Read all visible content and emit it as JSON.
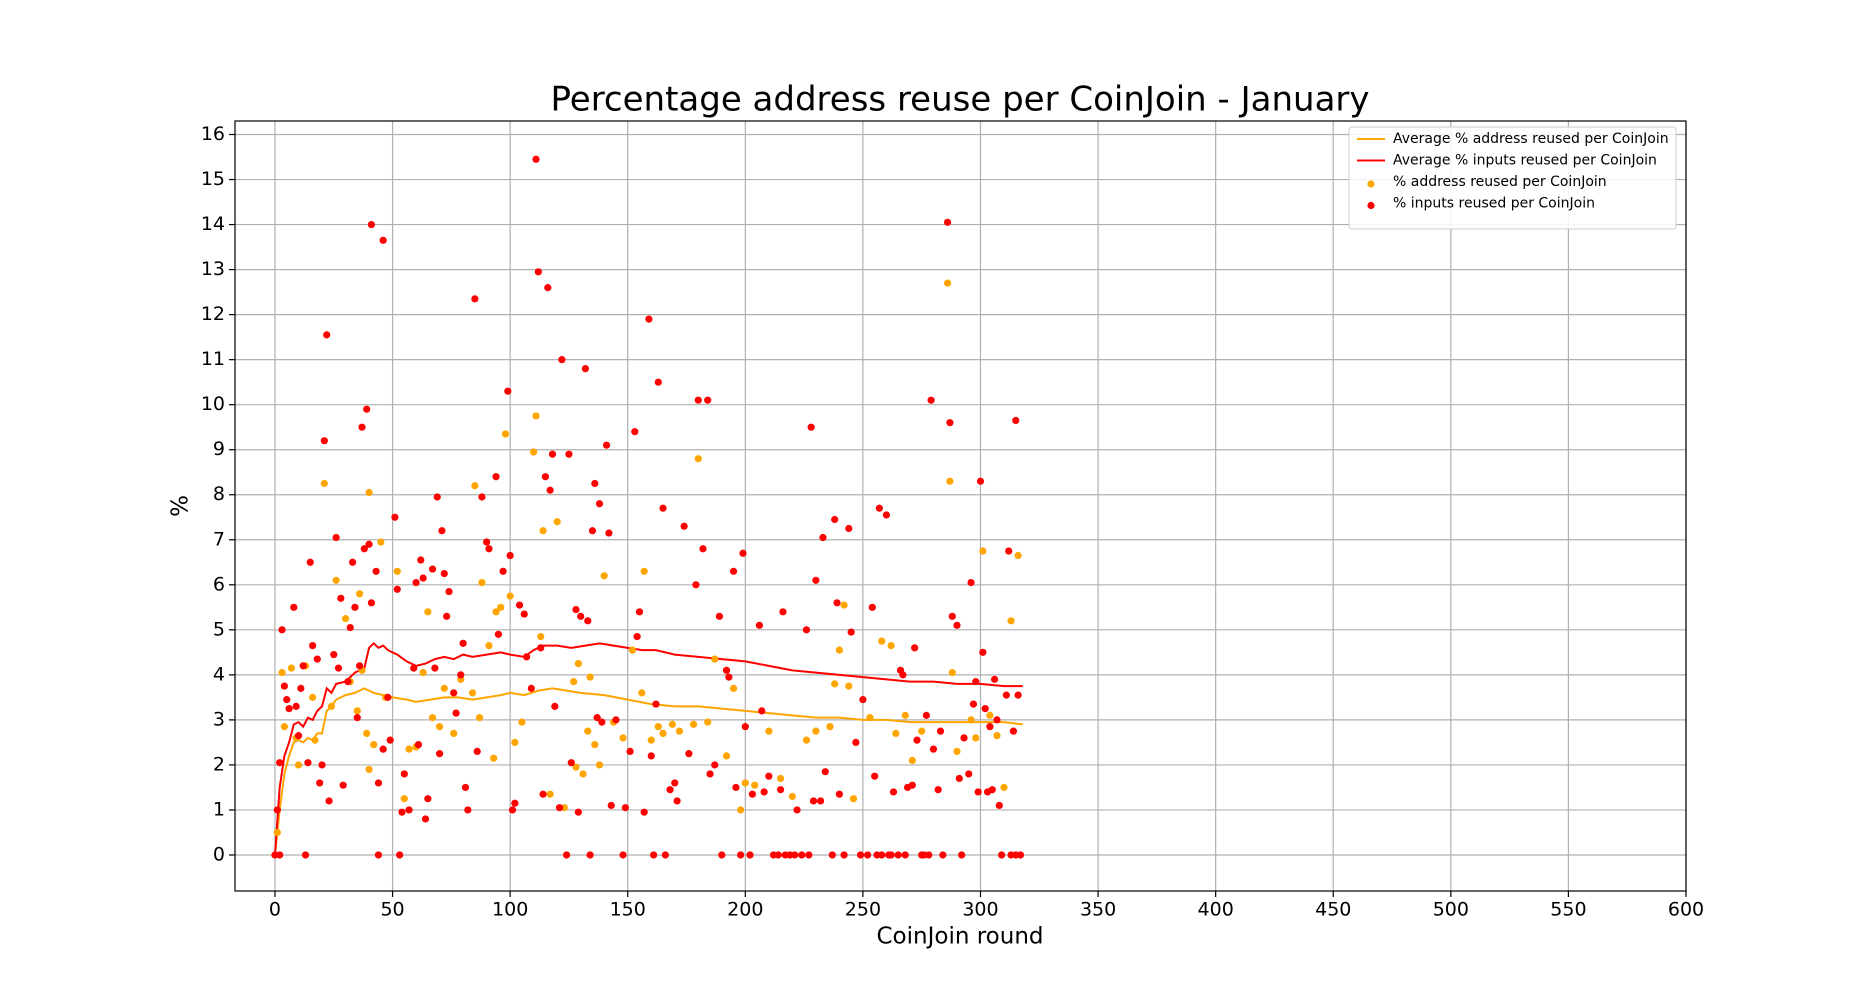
{
  "chart_data": {
    "type": "scatter",
    "title": "Percentage address reuse per CoinJoin - January",
    "x_label": "CoinJoin round",
    "y_label": "%",
    "xlim": [
      -17,
      600
    ],
    "ylim": [
      -0.8,
      16.3
    ],
    "xticks": [
      0,
      50,
      100,
      150,
      200,
      250,
      300,
      350,
      400,
      450,
      500,
      550,
      600
    ],
    "yticks": [
      0,
      1,
      2,
      3,
      4,
      5,
      6,
      7,
      8,
      9,
      10,
      11,
      12,
      13,
      14,
      15,
      16
    ],
    "grid": true,
    "legend": "upper right",
    "series": [
      {
        "name": "Average % address reused per CoinJoin",
        "color": "#ffa500",
        "type": "line",
        "x": [
          0,
          2,
          4,
          6,
          8,
          10,
          12,
          14,
          16,
          18,
          20,
          22,
          24,
          26,
          30,
          34,
          38,
          42,
          46,
          50,
          56,
          60,
          66,
          72,
          78,
          84,
          90,
          96,
          100,
          106,
          112,
          118,
          124,
          130,
          140,
          150,
          160,
          170,
          180,
          190,
          200,
          210,
          220,
          230,
          240,
          250,
          260,
          270,
          280,
          290,
          300,
          310,
          318
        ],
        "values": [
          0,
          1.0,
          1.8,
          2.2,
          2.5,
          2.55,
          2.5,
          2.6,
          2.55,
          2.7,
          2.7,
          3.2,
          3.3,
          3.45,
          3.55,
          3.6,
          3.7,
          3.6,
          3.55,
          3.5,
          3.45,
          3.4,
          3.45,
          3.5,
          3.5,
          3.45,
          3.5,
          3.55,
          3.6,
          3.55,
          3.65,
          3.7,
          3.65,
          3.6,
          3.55,
          3.45,
          3.35,
          3.3,
          3.3,
          3.25,
          3.2,
          3.15,
          3.1,
          3.05,
          3.05,
          3.0,
          3.0,
          2.95,
          2.95,
          2.95,
          2.95,
          2.95,
          2.9
        ]
      },
      {
        "name": "Average % inputs reused per CoinJoin",
        "color": "#ff0000",
        "type": "line",
        "x": [
          0,
          2,
          4,
          6,
          8,
          10,
          12,
          14,
          16,
          18,
          20,
          22,
          24,
          26,
          30,
          34,
          38,
          40,
          42,
          44,
          46,
          48,
          52,
          56,
          60,
          64,
          68,
          72,
          76,
          80,
          84,
          90,
          96,
          100,
          106,
          110,
          114,
          120,
          126,
          132,
          138,
          144,
          150,
          156,
          162,
          170,
          180,
          190,
          200,
          210,
          220,
          230,
          240,
          250,
          260,
          270,
          280,
          290,
          300,
          310,
          318
        ],
        "values": [
          0,
          1.5,
          2.2,
          2.5,
          2.9,
          2.95,
          2.85,
          3.05,
          3.0,
          3.2,
          3.3,
          3.7,
          3.6,
          3.8,
          3.85,
          4.05,
          4.15,
          4.6,
          4.7,
          4.6,
          4.65,
          4.55,
          4.45,
          4.3,
          4.2,
          4.25,
          4.35,
          4.4,
          4.35,
          4.45,
          4.4,
          4.45,
          4.5,
          4.45,
          4.4,
          4.55,
          4.65,
          4.65,
          4.6,
          4.65,
          4.7,
          4.65,
          4.6,
          4.55,
          4.55,
          4.45,
          4.4,
          4.35,
          4.3,
          4.2,
          4.1,
          4.05,
          4.0,
          3.95,
          3.9,
          3.85,
          3.85,
          3.8,
          3.8,
          3.75,
          3.75
        ]
      },
      {
        "name": "% address reused per CoinJoin",
        "color": "#ffa500",
        "type": "scatter",
        "x": [
          0,
          1,
          3,
          4,
          7,
          9,
          10,
          13,
          16,
          17,
          21,
          24,
          26,
          30,
          32,
          35,
          36,
          37,
          39,
          40,
          40,
          42,
          45,
          47,
          52,
          55,
          57,
          60,
          63,
          65,
          67,
          70,
          72,
          76,
          79,
          84,
          85,
          87,
          88,
          91,
          93,
          94,
          96,
          98,
          100,
          102,
          105,
          110,
          111,
          113,
          114,
          117,
          120,
          123,
          127,
          128,
          129,
          131,
          133,
          134,
          136,
          138,
          140,
          144,
          148,
          152,
          156,
          157,
          160,
          163,
          165,
          169,
          172,
          178,
          180,
          184,
          187,
          192,
          195,
          198,
          200,
          204,
          210,
          215,
          220,
          226,
          230,
          236,
          238,
          240,
          242,
          244,
          246,
          253,
          258,
          262,
          264,
          268,
          271,
          275,
          286,
          287,
          288,
          290,
          296,
          298,
          301,
          304,
          307,
          310,
          313,
          316
        ],
        "values": [
          0,
          0.5,
          4.05,
          2.85,
          4.15,
          2.6,
          2.0,
          4.2,
          3.5,
          2.55,
          8.25,
          3.3,
          6.1,
          5.25,
          3.85,
          3.2,
          5.8,
          4.1,
          2.7,
          8.05,
          1.9,
          2.45,
          6.95,
          3.5,
          6.3,
          1.25,
          2.35,
          2.4,
          4.05,
          5.4,
          3.05,
          2.85,
          3.7,
          2.7,
          3.9,
          3.6,
          8.2,
          3.05,
          6.05,
          4.65,
          2.15,
          5.4,
          5.5,
          9.35,
          5.75,
          2.5,
          2.95,
          8.95,
          9.75,
          4.85,
          7.2,
          1.35,
          7.4,
          1.05,
          3.85,
          1.95,
          4.25,
          1.8,
          2.75,
          3.95,
          2.45,
          2.0,
          6.2,
          2.95,
          2.6,
          4.55,
          3.6,
          6.3,
          2.55,
          2.85,
          2.7,
          2.9,
          2.75,
          2.9,
          8.8,
          2.95,
          4.35,
          2.2,
          3.7,
          1.0,
          1.6,
          1.55,
          2.75,
          1.7,
          1.3,
          2.55,
          2.75,
          2.85,
          3.8,
          4.55,
          5.55,
          3.75,
          1.25,
          3.05,
          4.75,
          4.65,
          2.7,
          3.1,
          2.1,
          2.75,
          12.7,
          8.3,
          4.05,
          2.3,
          3.0,
          2.6,
          6.75,
          3.1,
          2.65,
          1.5,
          5.2,
          6.65
        ]
      },
      {
        "name": "% inputs reused per CoinJoin",
        "color": "#ff0000",
        "type": "scatter",
        "x": [
          0,
          1,
          2,
          2,
          3,
          4,
          5,
          6,
          8,
          9,
          10,
          11,
          12,
          13,
          14,
          15,
          16,
          18,
          19,
          20,
          21,
          22,
          23,
          25,
          26,
          27,
          28,
          29,
          31,
          32,
          33,
          34,
          35,
          36,
          37,
          38,
          39,
          40,
          41,
          41,
          43,
          44,
          44,
          46,
          46,
          48,
          49,
          51,
          52,
          53,
          54,
          55,
          57,
          59,
          60,
          61,
          62,
          63,
          64,
          65,
          67,
          68,
          69,
          70,
          71,
          72,
          73,
          74,
          76,
          77,
          79,
          80,
          81,
          82,
          85,
          86,
          88,
          90,
          91,
          94,
          95,
          97,
          99,
          100,
          101,
          102,
          104,
          106,
          107,
          109,
          111,
          112,
          113,
          114,
          115,
          116,
          117,
          118,
          119,
          121,
          122,
          124,
          125,
          126,
          128,
          129,
          130,
          132,
          133,
          134,
          135,
          136,
          137,
          138,
          139,
          141,
          142,
          143,
          145,
          148,
          149,
          151,
          153,
          154,
          155,
          157,
          159,
          160,
          161,
          162,
          163,
          165,
          166,
          168,
          170,
          171,
          174,
          176,
          179,
          180,
          182,
          184,
          185,
          187,
          189,
          190,
          192,
          193,
          195,
          196,
          198,
          199,
          200,
          202,
          203,
          206,
          207,
          208,
          210,
          212,
          214,
          215,
          216,
          217,
          219,
          221,
          222,
          224,
          226,
          227,
          228,
          229,
          230,
          232,
          233,
          234,
          237,
          238,
          239,
          240,
          242,
          244,
          245,
          247,
          249,
          250,
          252,
          254,
          255,
          256,
          257,
          258,
          260,
          261,
          262,
          263,
          265,
          266,
          267,
          268,
          269,
          271,
          272,
          273,
          275,
          276,
          277,
          278,
          279,
          280,
          282,
          283,
          284,
          286,
          287,
          288,
          290,
          291,
          292,
          293,
          295,
          296,
          297,
          298,
          299,
          300,
          301,
          302,
          303,
          304,
          305,
          306,
          307,
          308,
          309,
          311,
          312,
          313,
          314,
          315,
          315,
          316,
          317
        ],
        "values": [
          0,
          1.0,
          2.05,
          0,
          5.0,
          3.75,
          3.45,
          3.25,
          5.5,
          3.3,
          2.65,
          3.7,
          4.2,
          0,
          2.05,
          6.5,
          4.65,
          4.35,
          1.6,
          2.0,
          9.2,
          11.55,
          1.2,
          4.45,
          7.05,
          4.15,
          5.7,
          1.55,
          3.85,
          5.05,
          6.5,
          5.5,
          3.05,
          4.2,
          9.5,
          6.8,
          9.9,
          6.9,
          5.6,
          14.0,
          6.3,
          1.6,
          0,
          2.35,
          13.65,
          3.5,
          2.55,
          7.5,
          5.9,
          0,
          0.95,
          1.8,
          1.0,
          4.15,
          6.05,
          2.45,
          6.55,
          6.15,
          0.8,
          1.25,
          6.35,
          4.15,
          7.95,
          2.25,
          7.2,
          6.25,
          5.3,
          5.85,
          3.6,
          3.15,
          4.0,
          4.7,
          1.5,
          1.0,
          12.35,
          2.3,
          7.95,
          6.95,
          6.8,
          8.4,
          4.9,
          6.3,
          10.3,
          6.65,
          1.0,
          1.15,
          5.55,
          5.35,
          4.4,
          3.7,
          15.45,
          12.95,
          4.6,
          1.35,
          8.4,
          12.6,
          8.1,
          8.9,
          3.3,
          1.05,
          11.0,
          0,
          8.9,
          2.05,
          5.45,
          0.95,
          5.3,
          10.8,
          5.2,
          0,
          7.2,
          8.25,
          3.05,
          7.8,
          2.95,
          9.1,
          7.15,
          1.1,
          3.0,
          0,
          1.05,
          2.3,
          9.4,
          4.85,
          5.4,
          0.95,
          11.9,
          2.2,
          0,
          3.35,
          10.5,
          7.7,
          0,
          1.45,
          1.6,
          1.2,
          7.3,
          2.25,
          6.0,
          10.1,
          6.8,
          10.1,
          1.8,
          2.0,
          5.3,
          0,
          4.1,
          3.95,
          6.3,
          1.5,
          0,
          6.7,
          2.85,
          0,
          1.35,
          5.1,
          3.2,
          1.4,
          1.75,
          0,
          0,
          1.45,
          5.4,
          0,
          0,
          0,
          1.0,
          0,
          5.0,
          0,
          9.5,
          1.2,
          6.1,
          1.2,
          7.05,
          1.85,
          0,
          7.45,
          5.6,
          1.35,
          0,
          7.25,
          4.95,
          2.5,
          0,
          3.45,
          0,
          5.5,
          1.75,
          0,
          7.7,
          0,
          7.55,
          0,
          0,
          1.4,
          0,
          4.1,
          4.0,
          0,
          1.5,
          1.55,
          4.6,
          2.55,
          0,
          0,
          3.1,
          0,
          10.1,
          2.35,
          1.45,
          2.75,
          0,
          14.05,
          9.6,
          5.3,
          5.1,
          1.7,
          0,
          2.6,
          1.8,
          6.05,
          3.35,
          3.85,
          1.4,
          8.3,
          4.5,
          3.25,
          1.4,
          2.85,
          1.45,
          3.9,
          3.0,
          1.1,
          0,
          3.55,
          6.75,
          0,
          2.75,
          9.65,
          0,
          3.55,
          0
        ]
      }
    ]
  }
}
